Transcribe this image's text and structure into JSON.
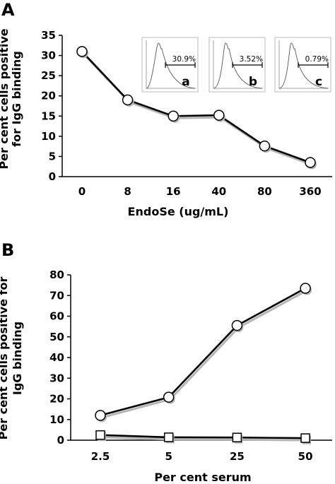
{
  "chart_data": [
    {
      "panel": "A",
      "type": "line",
      "categories": [
        "0",
        "8",
        "16",
        "40",
        "80",
        "360"
      ],
      "series": [
        {
          "marker": "circle",
          "values": [
            31,
            19,
            15,
            15.2,
            7.6,
            3.5
          ]
        }
      ],
      "xlabel": "EndoSe (ug/mL)",
      "ylabel": "Per cent cells positive for IgG binding",
      "ylim": [
        0,
        35
      ],
      "yticks": [
        0,
        5,
        10,
        15,
        20,
        25,
        30,
        35
      ],
      "grid": false,
      "insets": [
        {
          "letter": "a",
          "percent": "30.9%",
          "gate_fraction": 0.309
        },
        {
          "letter": "b",
          "percent": "3.52%",
          "gate_fraction": 0.0352
        },
        {
          "letter": "c",
          "percent": "0.79%",
          "gate_fraction": 0.0079
        }
      ]
    },
    {
      "panel": "B",
      "type": "line",
      "categories": [
        "2.5",
        "5",
        "25",
        "50"
      ],
      "series": [
        {
          "marker": "circle",
          "values": [
            12,
            20.8,
            55.5,
            73.5
          ]
        },
        {
          "marker": "square",
          "values": [
            2.5,
            1.4,
            1.3,
            1.0
          ]
        }
      ],
      "xlabel": "Per cent serum",
      "ylabel": "Per cent cells positive for IgG binding",
      "ylim": [
        0,
        80
      ],
      "yticks": [
        0,
        10,
        20,
        30,
        40,
        50,
        60,
        70,
        80
      ],
      "grid": false
    }
  ],
  "colors": {
    "line": "#000000",
    "marker_fill": "#ffffff",
    "shadow": "#b5b5b5",
    "inset_border": "#bbbbbb",
    "histogram": "#888888"
  }
}
